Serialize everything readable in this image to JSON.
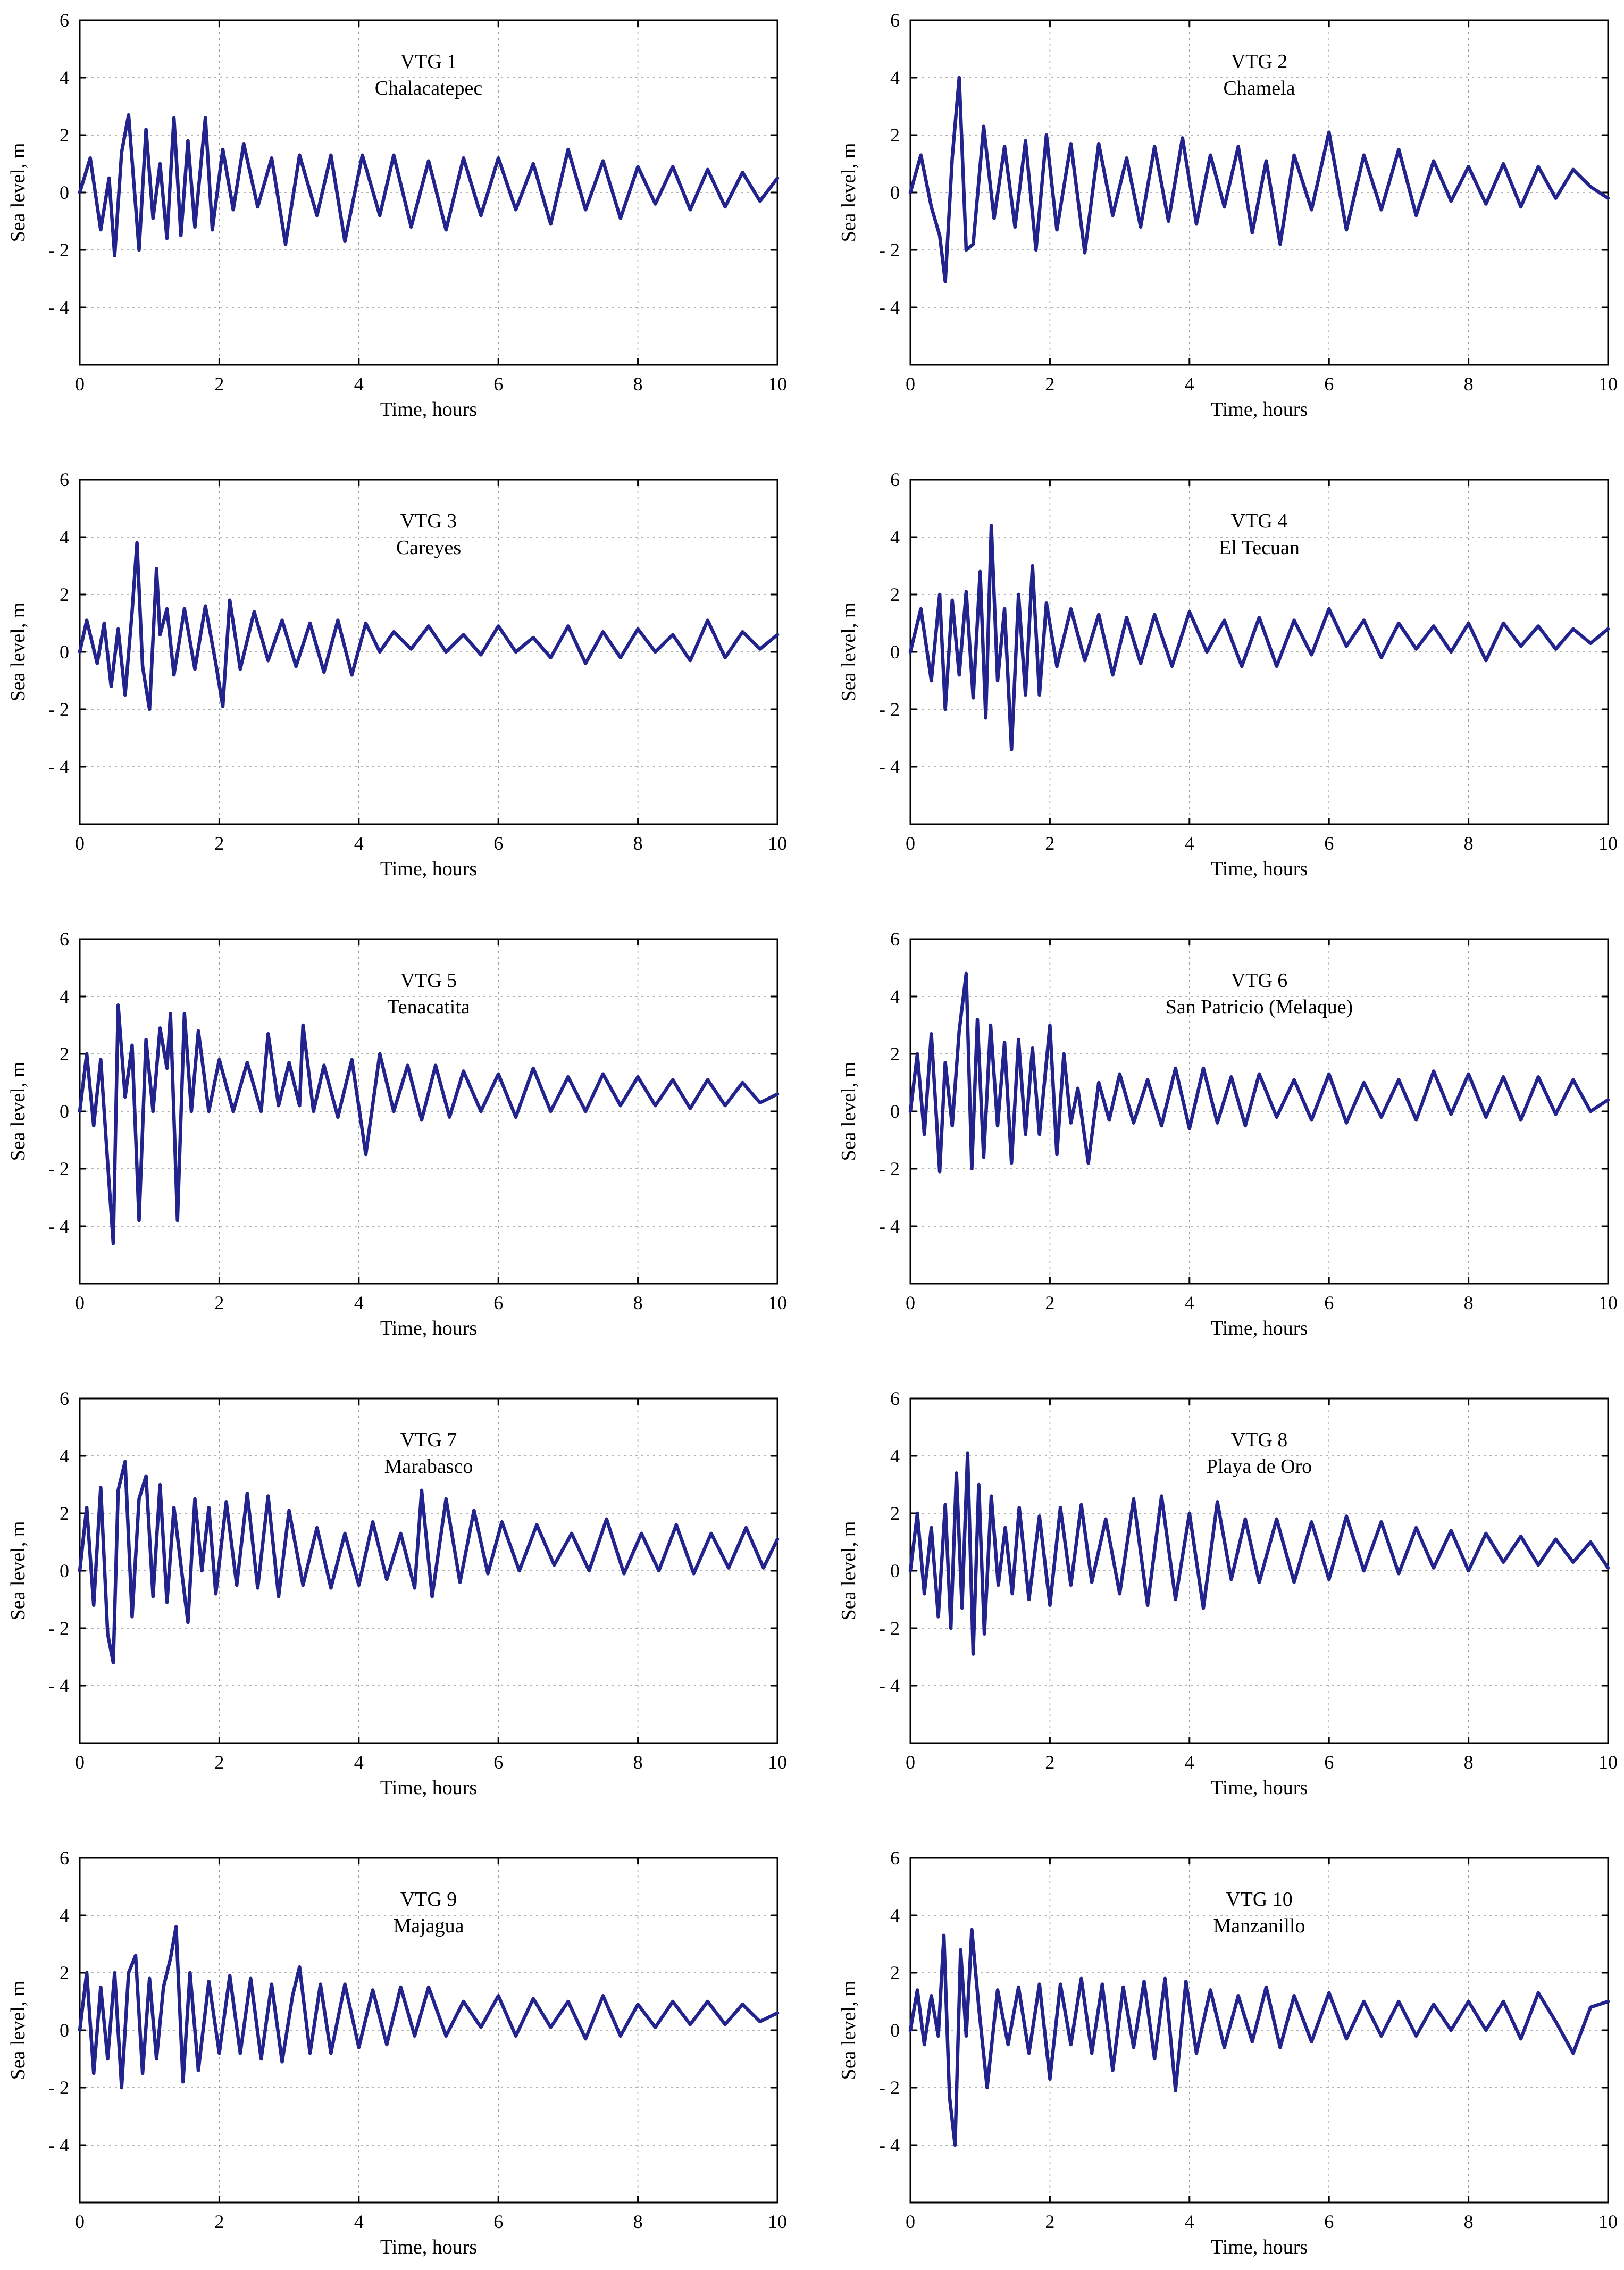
{
  "axes": {
    "xlabel": "Time, hours",
    "ylabel": "Sea level, m",
    "x_ticks": [
      "0",
      "2",
      "4",
      "6",
      "8",
      "10"
    ],
    "y_ticks": [
      "6",
      "4",
      "2",
      "0",
      "- 2",
      "- 4"
    ]
  },
  "colors": {
    "series": "#23238e",
    "grid": "#9a9a9a",
    "frame": "#000000"
  },
  "chart_data": [
    {
      "type": "line",
      "title": "VTG 1",
      "subtitle": "Chalacatepec",
      "xlim": [
        0,
        10
      ],
      "ylim": [
        -6,
        6
      ],
      "grid": true,
      "x": [
        0,
        0.15,
        0.3,
        0.42,
        0.5,
        0.6,
        0.7,
        0.85,
        0.95,
        1.05,
        1.15,
        1.25,
        1.35,
        1.45,
        1.55,
        1.65,
        1.8,
        1.9,
        2.05,
        2.2,
        2.35,
        2.55,
        2.75,
        2.95,
        3.15,
        3.4,
        3.6,
        3.8,
        4.05,
        4.3,
        4.5,
        4.75,
        5,
        5.25,
        5.5,
        5.75,
        6,
        6.25,
        6.5,
        6.75,
        7,
        7.25,
        7.5,
        7.75,
        8,
        8.25,
        8.5,
        8.75,
        9,
        9.25,
        9.5,
        9.75,
        10
      ],
      "y": [
        0,
        1.2,
        -1.3,
        0.5,
        -2.2,
        1.4,
        2.7,
        -2,
        2.2,
        -0.9,
        1,
        -1.6,
        2.6,
        -1.5,
        1.8,
        -1.2,
        2.6,
        -1.3,
        1.5,
        -0.6,
        1.7,
        -0.5,
        1.2,
        -1.8,
        1.3,
        -0.8,
        1.3,
        -1.7,
        1.3,
        -0.8,
        1.3,
        -1.2,
        1.1,
        -1.3,
        1.2,
        -0.8,
        1.2,
        -0.6,
        1,
        -1.1,
        1.5,
        -0.6,
        1.1,
        -0.9,
        0.9,
        -0.4,
        0.9,
        -0.6,
        0.8,
        -0.5,
        0.7,
        -0.3,
        0.5
      ]
    },
    {
      "type": "line",
      "title": "VTG 2",
      "subtitle": "Chamela",
      "xlim": [
        0,
        10
      ],
      "ylim": [
        -6,
        6
      ],
      "grid": true,
      "x": [
        0,
        0.15,
        0.3,
        0.42,
        0.5,
        0.6,
        0.7,
        0.8,
        0.9,
        1.05,
        1.2,
        1.35,
        1.5,
        1.65,
        1.8,
        1.95,
        2.1,
        2.3,
        2.5,
        2.7,
        2.9,
        3.1,
        3.3,
        3.5,
        3.7,
        3.9,
        4.1,
        4.3,
        4.5,
        4.7,
        4.9,
        5.1,
        5.3,
        5.5,
        5.75,
        6,
        6.25,
        6.5,
        6.75,
        7,
        7.25,
        7.5,
        7.75,
        8,
        8.25,
        8.5,
        8.75,
        9,
        9.25,
        9.5,
        9.75,
        10
      ],
      "y": [
        0,
        1.3,
        -0.5,
        -1.5,
        -3.1,
        1.2,
        4,
        -2,
        -1.8,
        2.3,
        -0.9,
        1.6,
        -1.2,
        1.8,
        -2,
        2,
        -1.3,
        1.7,
        -2.1,
        1.7,
        -0.8,
        1.2,
        -1.2,
        1.6,
        -1,
        1.9,
        -1.1,
        1.3,
        -0.5,
        1.6,
        -1.4,
        1.1,
        -1.8,
        1.3,
        -0.6,
        2.1,
        -1.3,
        1.3,
        -0.6,
        1.5,
        -0.8,
        1.1,
        -0.3,
        0.9,
        -0.4,
        1,
        -0.5,
        0.9,
        -0.2,
        0.8,
        0.2,
        -0.2
      ]
    },
    {
      "type": "line",
      "title": "VTG 3",
      "subtitle": "Careyes",
      "xlim": [
        0,
        10
      ],
      "ylim": [
        -6,
        6
      ],
      "grid": true,
      "x": [
        0,
        0.1,
        0.25,
        0.35,
        0.45,
        0.55,
        0.65,
        0.75,
        0.82,
        0.9,
        1,
        1.1,
        1.15,
        1.25,
        1.35,
        1.5,
        1.65,
        1.8,
        1.95,
        2.05,
        2.15,
        2.3,
        2.5,
        2.7,
        2.9,
        3.1,
        3.3,
        3.5,
        3.7,
        3.9,
        4.1,
        4.3,
        4.5,
        4.75,
        5,
        5.25,
        5.5,
        5.75,
        6,
        6.25,
        6.5,
        6.75,
        7,
        7.25,
        7.5,
        7.75,
        8,
        8.25,
        8.5,
        8.75,
        9,
        9.25,
        9.5,
        9.75,
        10
      ],
      "y": [
        0,
        1.1,
        -0.4,
        1,
        -1.2,
        0.8,
        -1.5,
        1.4,
        3.8,
        -0.5,
        -2,
        2.9,
        0.6,
        1.5,
        -0.8,
        1.5,
        -0.6,
        1.6,
        -0.4,
        -1.9,
        1.8,
        -0.6,
        1.4,
        -0.3,
        1.1,
        -0.5,
        1,
        -0.7,
        1.1,
        -0.8,
        1,
        0,
        0.7,
        0.1,
        0.9,
        0,
        0.6,
        -0.1,
        0.9,
        0,
        0.5,
        -0.2,
        0.9,
        -0.4,
        0.7,
        -0.2,
        0.8,
        0,
        0.6,
        -0.3,
        1.1,
        -0.2,
        0.7,
        0.1,
        0.6
      ]
    },
    {
      "type": "line",
      "title": "VTG 4",
      "subtitle": "El Tecuan",
      "xlim": [
        0,
        10
      ],
      "ylim": [
        -6,
        6
      ],
      "grid": true,
      "x": [
        0,
        0.15,
        0.3,
        0.42,
        0.5,
        0.6,
        0.7,
        0.8,
        0.9,
        1,
        1.08,
        1.16,
        1.25,
        1.35,
        1.45,
        1.55,
        1.65,
        1.75,
        1.85,
        1.95,
        2.1,
        2.3,
        2.5,
        2.7,
        2.9,
        3.1,
        3.3,
        3.5,
        3.75,
        4,
        4.25,
        4.5,
        4.75,
        5,
        5.25,
        5.5,
        5.75,
        6,
        6.25,
        6.5,
        6.75,
        7,
        7.25,
        7.5,
        7.75,
        8,
        8.25,
        8.5,
        8.75,
        9,
        9.25,
        9.5,
        9.75,
        10
      ],
      "y": [
        0,
        1.5,
        -1,
        2,
        -2,
        1.8,
        -0.8,
        2.1,
        -1.6,
        2.8,
        -2.3,
        4.4,
        -1,
        1.5,
        -3.4,
        2,
        -1.5,
        3,
        -1.5,
        1.7,
        -0.5,
        1.5,
        -0.3,
        1.3,
        -0.8,
        1.2,
        -0.4,
        1.3,
        -0.5,
        1.4,
        0,
        1.1,
        -0.5,
        1.2,
        -0.5,
        1.1,
        -0.1,
        1.5,
        0.2,
        1.1,
        -0.2,
        1,
        0.1,
        0.9,
        0,
        1,
        -0.3,
        1,
        0.2,
        0.9,
        0.1,
        0.8,
        0.3,
        0.8
      ]
    },
    {
      "type": "line",
      "title": "VTG 5",
      "subtitle": "Tenacatita",
      "xlim": [
        0,
        10
      ],
      "ylim": [
        -6,
        6
      ],
      "grid": true,
      "x": [
        0,
        0.1,
        0.2,
        0.3,
        0.4,
        0.48,
        0.55,
        0.65,
        0.75,
        0.85,
        0.95,
        1.05,
        1.15,
        1.25,
        1.3,
        1.4,
        1.5,
        1.6,
        1.7,
        1.85,
        2,
        2.2,
        2.4,
        2.6,
        2.7,
        2.85,
        3,
        3.15,
        3.2,
        3.35,
        3.5,
        3.7,
        3.9,
        4.1,
        4.3,
        4.5,
        4.7,
        4.9,
        5.1,
        5.3,
        5.5,
        5.75,
        6,
        6.25,
        6.5,
        6.75,
        7,
        7.25,
        7.5,
        7.75,
        8,
        8.25,
        8.5,
        8.75,
        9,
        9.25,
        9.5,
        9.75,
        10
      ],
      "y": [
        0,
        2,
        -0.5,
        1.8,
        -1.8,
        -4.6,
        3.7,
        0.5,
        2.3,
        -3.8,
        2.5,
        0,
        2.9,
        1.5,
        3.4,
        -3.8,
        3.4,
        0,
        2.8,
        0,
        1.8,
        0,
        1.7,
        0,
        2.7,
        0.2,
        1.7,
        0.2,
        3,
        0,
        1.6,
        -0.2,
        1.8,
        -1.5,
        2,
        0,
        1.6,
        -0.3,
        1.6,
        -0.2,
        1.4,
        0,
        1.3,
        -0.2,
        1.5,
        0,
        1.2,
        0,
        1.3,
        0.2,
        1.2,
        0.2,
        1.1,
        0.1,
        1.1,
        0.2,
        1,
        0.3,
        0.6
      ]
    },
    {
      "type": "line",
      "title": "VTG 6",
      "subtitle": "San Patricio (Melaque)",
      "xlim": [
        0,
        10
      ],
      "ylim": [
        -6,
        6
      ],
      "grid": true,
      "x": [
        0,
        0.1,
        0.2,
        0.3,
        0.42,
        0.5,
        0.6,
        0.7,
        0.8,
        0.88,
        0.96,
        1.05,
        1.15,
        1.25,
        1.35,
        1.45,
        1.55,
        1.65,
        1.75,
        1.85,
        2,
        2.1,
        2.2,
        2.3,
        2.4,
        2.55,
        2.7,
        2.85,
        3,
        3.2,
        3.4,
        3.6,
        3.8,
        4,
        4.2,
        4.4,
        4.6,
        4.8,
        5,
        5.25,
        5.5,
        5.75,
        6,
        6.25,
        6.5,
        6.75,
        7,
        7.25,
        7.5,
        7.75,
        8,
        8.25,
        8.5,
        8.75,
        9,
        9.25,
        9.5,
        9.75,
        10
      ],
      "y": [
        0,
        2,
        -0.8,
        2.7,
        -2.1,
        1.7,
        -0.5,
        2.8,
        4.8,
        -2,
        3.2,
        -1.6,
        3,
        -0.5,
        2.4,
        -1.8,
        2.5,
        -0.8,
        2.2,
        -0.8,
        3,
        -1.5,
        2,
        -0.4,
        0.8,
        -1.8,
        1,
        -0.3,
        1.3,
        -0.4,
        1.1,
        -0.5,
        1.5,
        -0.6,
        1.5,
        -0.4,
        1.2,
        -0.5,
        1.3,
        -0.2,
        1.1,
        -0.3,
        1.3,
        -0.4,
        1,
        -0.2,
        1.1,
        -0.3,
        1.4,
        -0.1,
        1.3,
        -0.2,
        1.2,
        -0.3,
        1.2,
        -0.1,
        1.1,
        0,
        0.4
      ]
    },
    {
      "type": "line",
      "title": "VTG 7",
      "subtitle": "Marabasco",
      "xlim": [
        0,
        10
      ],
      "ylim": [
        -6,
        6
      ],
      "grid": true,
      "x": [
        0,
        0.1,
        0.2,
        0.3,
        0.4,
        0.48,
        0.55,
        0.65,
        0.75,
        0.85,
        0.95,
        1.05,
        1.15,
        1.25,
        1.35,
        1.45,
        1.55,
        1.65,
        1.75,
        1.85,
        1.95,
        2.1,
        2.25,
        2.4,
        2.55,
        2.7,
        2.85,
        3,
        3.2,
        3.4,
        3.6,
        3.8,
        4,
        4.2,
        4.4,
        4.6,
        4.8,
        4.9,
        5.05,
        5.25,
        5.45,
        5.65,
        5.85,
        6.05,
        6.3,
        6.55,
        6.8,
        7.05,
        7.3,
        7.55,
        7.8,
        8.05,
        8.3,
        8.55,
        8.8,
        9.05,
        9.3,
        9.55,
        9.8,
        10
      ],
      "y": [
        0,
        2.2,
        -1.2,
        2.9,
        -2.2,
        -3.2,
        2.8,
        3.8,
        -1.6,
        2.5,
        3.3,
        -0.9,
        3,
        -1.1,
        2.2,
        0.2,
        -1.8,
        2.5,
        0,
        2.2,
        -0.8,
        2.4,
        -0.5,
        2.7,
        -0.6,
        2.6,
        -0.9,
        2.1,
        -0.5,
        1.5,
        -0.6,
        1.3,
        -0.5,
        1.7,
        -0.3,
        1.3,
        -0.6,
        2.8,
        -0.9,
        2.5,
        -0.4,
        2.1,
        -0.1,
        1.7,
        0,
        1.6,
        0.2,
        1.3,
        0,
        1.8,
        -0.1,
        1.3,
        0,
        1.6,
        -0.1,
        1.3,
        0.1,
        1.5,
        0.1,
        1.1
      ]
    },
    {
      "type": "line",
      "title": "VTG 8",
      "subtitle": "Playa de Oro",
      "xlim": [
        0,
        10
      ],
      "ylim": [
        -6,
        6
      ],
      "grid": true,
      "x": [
        0,
        0.1,
        0.2,
        0.3,
        0.4,
        0.5,
        0.58,
        0.66,
        0.74,
        0.82,
        0.9,
        0.98,
        1.06,
        1.16,
        1.26,
        1.36,
        1.46,
        1.56,
        1.7,
        1.85,
        2,
        2.15,
        2.3,
        2.45,
        2.6,
        2.8,
        3,
        3.2,
        3.4,
        3.6,
        3.8,
        4,
        4.2,
        4.4,
        4.6,
        4.8,
        5,
        5.25,
        5.5,
        5.75,
        6,
        6.25,
        6.5,
        6.75,
        7,
        7.25,
        7.5,
        7.75,
        8,
        8.25,
        8.5,
        8.75,
        9,
        9.25,
        9.5,
        9.75,
        10
      ],
      "y": [
        0,
        2,
        -0.8,
        1.5,
        -1.6,
        2.3,
        -2,
        3.4,
        -1.3,
        4.1,
        -2.9,
        3,
        -2.2,
        2.6,
        -0.5,
        1.5,
        -0.8,
        2.2,
        -1,
        1.9,
        -1.2,
        2.2,
        -0.5,
        2.3,
        -0.4,
        1.8,
        -0.8,
        2.5,
        -1.2,
        2.6,
        -1,
        2,
        -1.3,
        2.4,
        -0.3,
        1.8,
        -0.4,
        1.8,
        -0.4,
        1.7,
        -0.3,
        1.9,
        0,
        1.7,
        -0.1,
        1.5,
        0.1,
        1.4,
        0,
        1.3,
        0.3,
        1.2,
        0.2,
        1.1,
        0.3,
        1,
        0.1
      ]
    },
    {
      "type": "line",
      "title": "VTG 9",
      "subtitle": "Majagua",
      "xlim": [
        0,
        10
      ],
      "ylim": [
        -6,
        6
      ],
      "grid": true,
      "x": [
        0,
        0.1,
        0.2,
        0.3,
        0.4,
        0.5,
        0.6,
        0.7,
        0.8,
        0.9,
        1,
        1.1,
        1.2,
        1.3,
        1.38,
        1.48,
        1.58,
        1.7,
        1.85,
        2,
        2.15,
        2.3,
        2.45,
        2.6,
        2.75,
        2.9,
        3.05,
        3.15,
        3.3,
        3.45,
        3.6,
        3.8,
        4,
        4.2,
        4.4,
        4.6,
        4.8,
        5,
        5.25,
        5.5,
        5.75,
        6,
        6.25,
        6.5,
        6.75,
        7,
        7.25,
        7.5,
        7.75,
        8,
        8.25,
        8.5,
        8.75,
        9,
        9.25,
        9.5,
        9.75,
        10
      ],
      "y": [
        0,
        2,
        -1.5,
        1.5,
        -1,
        2,
        -2,
        2,
        2.6,
        -1.5,
        1.8,
        -1,
        1.5,
        2.5,
        3.6,
        -1.8,
        2,
        -1.4,
        1.7,
        -0.8,
        1.9,
        -0.8,
        1.8,
        -1,
        1.6,
        -1.1,
        1.2,
        2.2,
        -0.8,
        1.6,
        -0.8,
        1.6,
        -0.6,
        1.4,
        -0.5,
        1.5,
        -0.2,
        1.5,
        -0.2,
        1,
        0.1,
        1.2,
        -0.2,
        1.1,
        0.1,
        1,
        -0.3,
        1.2,
        -0.2,
        0.9,
        0.1,
        1,
        0.2,
        1,
        0.2,
        0.9,
        0.3,
        0.6
      ]
    },
    {
      "type": "line",
      "title": "VTG 10",
      "subtitle": "Manzanillo",
      "xlim": [
        0,
        10
      ],
      "ylim": [
        -6,
        6
      ],
      "grid": true,
      "x": [
        0,
        0.1,
        0.2,
        0.3,
        0.4,
        0.48,
        0.56,
        0.64,
        0.72,
        0.8,
        0.88,
        0.98,
        1.1,
        1.25,
        1.4,
        1.55,
        1.7,
        1.85,
        2,
        2.15,
        2.3,
        2.45,
        2.6,
        2.75,
        2.9,
        3.05,
        3.2,
        3.35,
        3.5,
        3.65,
        3.8,
        3.95,
        4.1,
        4.3,
        4.5,
        4.7,
        4.9,
        5.1,
        5.3,
        5.5,
        5.75,
        6,
        6.25,
        6.5,
        6.75,
        7,
        7.25,
        7.5,
        7.75,
        8,
        8.25,
        8.5,
        8.75,
        9,
        9.25,
        9.5,
        9.75,
        10
      ],
      "y": [
        0,
        1.4,
        -0.5,
        1.2,
        -0.2,
        3.3,
        -2.3,
        -4,
        2.8,
        -0.2,
        3.5,
        0.8,
        -2,
        1.4,
        -0.5,
        1.5,
        -0.8,
        1.6,
        -1.7,
        1.6,
        -0.5,
        1.8,
        -0.8,
        1.6,
        -1.4,
        1.5,
        -0.6,
        1.7,
        -1,
        1.8,
        -2.1,
        1.7,
        -0.8,
        1.4,
        -0.6,
        1.2,
        -0.4,
        1.5,
        -0.6,
        1.2,
        -0.4,
        1.3,
        -0.3,
        1,
        -0.2,
        1,
        -0.2,
        0.9,
        0,
        1,
        0,
        1,
        -0.3,
        1.3,
        0.3,
        -0.8,
        0.8,
        1
      ]
    }
  ]
}
